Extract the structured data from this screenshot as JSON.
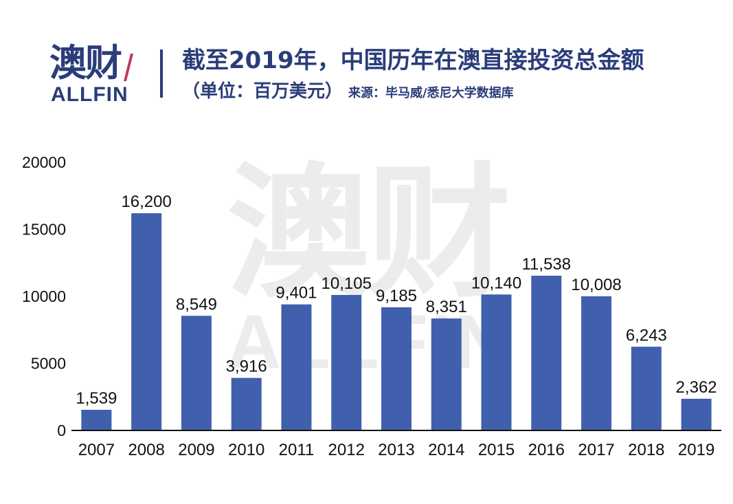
{
  "logo": {
    "cn_text": "澳财",
    "en_text": "ALLFIN"
  },
  "header": {
    "title": "截至2019年，中国历年在澳直接投资总金额",
    "unit": "（单位：百万美元）",
    "source": "来源：毕马威/悉尼大学数据库"
  },
  "watermark": {
    "cn_text": "澳财",
    "en_text": "ALLFIN"
  },
  "colors": {
    "bar": "#4060ad",
    "brand": "#2a3d7a",
    "accent": "#c0395a",
    "watermark": "#ececec"
  },
  "chart_data": {
    "type": "bar",
    "categories": [
      "2007",
      "2008",
      "2009",
      "2010",
      "2011",
      "2012",
      "2013",
      "2014",
      "2015",
      "2016",
      "2017",
      "2018",
      "2019"
    ],
    "values": [
      1539,
      16200,
      8549,
      3916,
      9401,
      10105,
      9185,
      8351,
      10140,
      11538,
      10008,
      6243,
      2362
    ],
    "value_labels": [
      "1,539",
      "16,200",
      "8,549",
      "3,916",
      "9,401",
      "10,105",
      "9,185",
      "8,351",
      "10,140",
      "11,538",
      "10,008",
      "6,243",
      "2,362"
    ],
    "ylim": [
      0,
      20000
    ],
    "yticks": [
      0,
      5000,
      10000,
      15000,
      20000
    ],
    "grid": false,
    "legend": "none",
    "title": "截至2019年，中国历年在澳直接投资总金额"
  }
}
